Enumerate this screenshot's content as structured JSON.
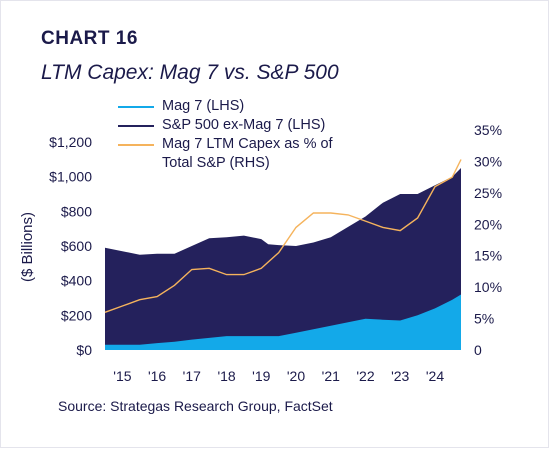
{
  "header": {
    "chart_number": "CHART 16",
    "title": "LTM Capex: Mag 7 vs. S&P 500"
  },
  "source": "Source:  Strategas Research Group, FactSet",
  "colors": {
    "mag7": "#13a9e9",
    "sp500_ex": "#24215c",
    "pct_line": "#f5b35c",
    "text": "#1b1a4a"
  },
  "chart_data": {
    "type": "area",
    "title": "LTM Capex: Mag 7 vs. S&P 500",
    "ylabel": "($ Billions)",
    "ylim": [
      0,
      1200
    ],
    "y2lim": [
      0,
      35
    ],
    "xlim": [
      2014.5,
      2024.75
    ],
    "y_ticks": [
      {
        "value": 0,
        "label": "$0"
      },
      {
        "value": 200,
        "label": "$200"
      },
      {
        "value": 400,
        "label": "$400"
      },
      {
        "value": 600,
        "label": "$600"
      },
      {
        "value": 800,
        "label": "$800"
      },
      {
        "value": 1000,
        "label": "$1,000"
      },
      {
        "value": 1200,
        "label": "$1,200"
      }
    ],
    "y2_ticks": [
      {
        "value": 0,
        "label": "0"
      },
      {
        "value": 5,
        "label": "5%"
      },
      {
        "value": 10,
        "label": "10%"
      },
      {
        "value": 15,
        "label": "15%"
      },
      {
        "value": 20,
        "label": "20%"
      },
      {
        "value": 25,
        "label": "25%"
      },
      {
        "value": 30,
        "label": "30%"
      },
      {
        "value": 35,
        "label": "35%"
      }
    ],
    "x_ticks": [
      {
        "value": 2015,
        "label": "'15"
      },
      {
        "value": 2016,
        "label": "'16"
      },
      {
        "value": 2017,
        "label": "'17"
      },
      {
        "value": 2018,
        "label": "'18"
      },
      {
        "value": 2019,
        "label": "'19"
      },
      {
        "value": 2020,
        "label": "'20"
      },
      {
        "value": 2021,
        "label": "'21"
      },
      {
        "value": 2022,
        "label": "'22"
      },
      {
        "value": 2023,
        "label": "'23"
      },
      {
        "value": 2024,
        "label": "'24"
      }
    ],
    "legend_placement": "top-left",
    "grid": false,
    "series": [
      {
        "name": "Mag 7 (LHS)",
        "axis": "left",
        "kind": "area",
        "points": [
          [
            2014.5,
            30
          ],
          [
            2015.0,
            30
          ],
          [
            2015.5,
            30
          ],
          [
            2016.0,
            40
          ],
          [
            2016.5,
            48
          ],
          [
            2017.0,
            60
          ],
          [
            2017.5,
            70
          ],
          [
            2018.0,
            80
          ],
          [
            2018.5,
            80
          ],
          [
            2019.0,
            80
          ],
          [
            2019.5,
            80
          ],
          [
            2020.0,
            100
          ],
          [
            2020.5,
            120
          ],
          [
            2021.0,
            140
          ],
          [
            2021.5,
            160
          ],
          [
            2022.0,
            180
          ],
          [
            2022.5,
            175
          ],
          [
            2023.0,
            170
          ],
          [
            2023.5,
            200
          ],
          [
            2024.0,
            240
          ],
          [
            2024.5,
            290
          ],
          [
            2024.75,
            320
          ]
        ]
      },
      {
        "name": "S&P 500 ex-Mag 7 (LHS)",
        "axis": "left",
        "kind": "area",
        "points": [
          [
            2014.5,
            590
          ],
          [
            2015.0,
            570
          ],
          [
            2015.5,
            550
          ],
          [
            2016.0,
            555
          ],
          [
            2016.5,
            555
          ],
          [
            2017.0,
            600
          ],
          [
            2017.5,
            645
          ],
          [
            2018.0,
            650
          ],
          [
            2018.5,
            660
          ],
          [
            2019.0,
            640
          ],
          [
            2019.2,
            610
          ],
          [
            2019.5,
            605
          ],
          [
            2020.0,
            600
          ],
          [
            2020.5,
            620
          ],
          [
            2021.0,
            650
          ],
          [
            2021.5,
            710
          ],
          [
            2022.0,
            770
          ],
          [
            2022.5,
            850
          ],
          [
            2023.0,
            900
          ],
          [
            2023.5,
            900
          ],
          [
            2024.0,
            950
          ],
          [
            2024.5,
            1000
          ],
          [
            2024.75,
            1050
          ]
        ]
      },
      {
        "name": "Mag 7 LTM Capex as % of Total S&P (RHS)",
        "axis": "right",
        "kind": "line",
        "points": [
          [
            2014.5,
            6.0
          ],
          [
            2015.0,
            7.0
          ],
          [
            2015.5,
            8.0
          ],
          [
            2016.0,
            8.5
          ],
          [
            2016.5,
            10.3
          ],
          [
            2017.0,
            12.8
          ],
          [
            2017.5,
            13.0
          ],
          [
            2018.0,
            12.0
          ],
          [
            2018.5,
            12.0
          ],
          [
            2019.0,
            13.0
          ],
          [
            2019.5,
            15.5
          ],
          [
            2020.0,
            19.5
          ],
          [
            2020.5,
            21.8
          ],
          [
            2021.0,
            21.8
          ],
          [
            2021.5,
            21.5
          ],
          [
            2022.0,
            20.5
          ],
          [
            2022.5,
            19.5
          ],
          [
            2023.0,
            19.0
          ],
          [
            2023.5,
            21.0
          ],
          [
            2024.0,
            26.0
          ],
          [
            2024.5,
            27.5
          ],
          [
            2024.75,
            30.3
          ]
        ]
      }
    ]
  }
}
